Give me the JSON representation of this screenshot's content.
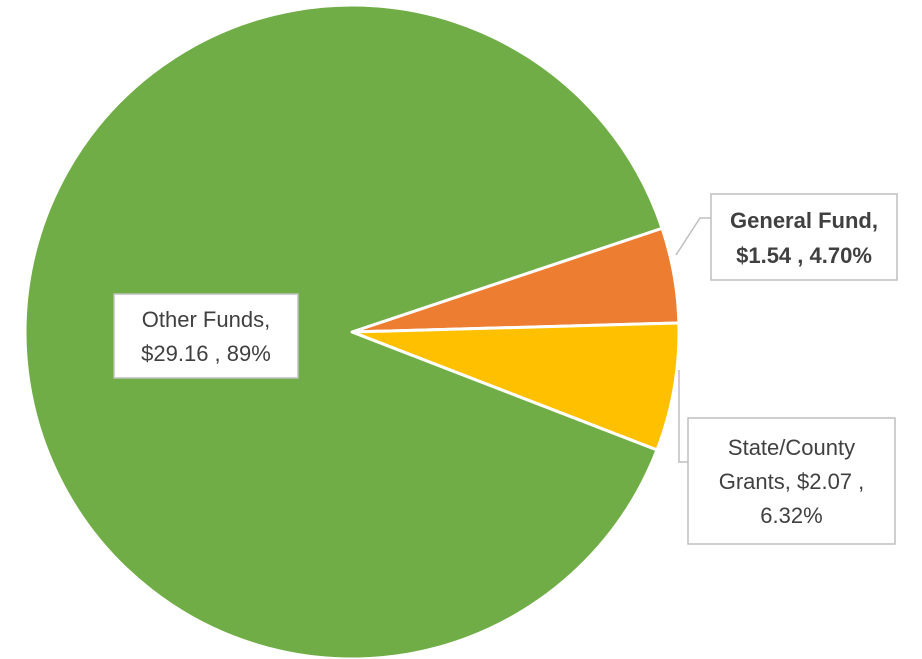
{
  "chart_data": {
    "type": "pie",
    "title": "",
    "slices": [
      {
        "name": "General Fund",
        "value": 1.54,
        "percent": 4.7,
        "color": "#ED7D31",
        "label_lines": [
          "General Fund,",
          "$1.54 , 4.70%"
        ],
        "label_bold": true
      },
      {
        "name": "State/County Grants",
        "value": 2.07,
        "percent": 6.32,
        "color": "#FFC000",
        "label_lines": [
          "State/County",
          "Grants, $2.07 ,",
          "6.32%"
        ],
        "label_bold": false
      },
      {
        "name": "Other Funds",
        "value": 29.16,
        "percent": 89,
        "color": "#70AD47",
        "label_lines": [
          "Other Funds,",
          "$29.16 , 89%"
        ],
        "label_bold": false
      }
    ],
    "start_angle_deg": -18.5,
    "direction": "clockwise",
    "slice_border_color": "#FFFFFF",
    "label_box_border_color": "#BFBFBF",
    "label_text_color": "#404040"
  }
}
